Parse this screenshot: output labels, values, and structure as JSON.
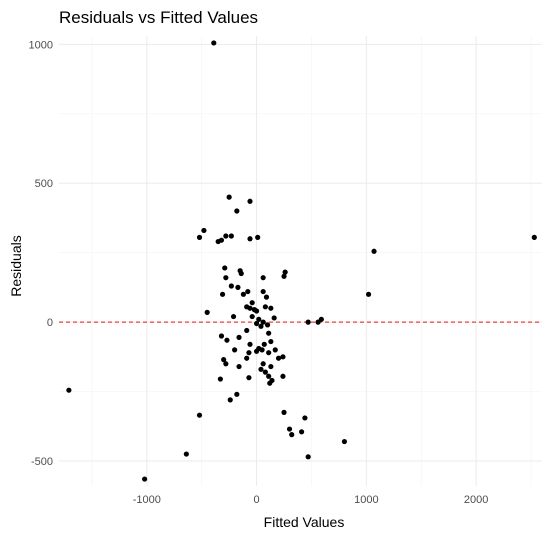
{
  "chart_data": {
    "type": "scatter",
    "title": "Residuals vs Fitted Values",
    "xlabel": "Fitted Values",
    "ylabel": "Residuals",
    "xlim": [
      -1800,
      2600
    ],
    "ylim": [
      -590,
      1030
    ],
    "x_ticks": [
      -1000,
      0,
      1000,
      2000
    ],
    "x_tick_labels": [
      "-1000",
      "0",
      "1000",
      "2000"
    ],
    "y_ticks": [
      -500,
      0,
      500,
      1000
    ],
    "y_tick_labels": [
      "-500",
      "0",
      "500",
      "1000"
    ],
    "grid": true,
    "reference_line": {
      "y": 0,
      "color": "#e8403a",
      "style": "dashed"
    },
    "point_color": "#000000",
    "points": [
      {
        "x": -390,
        "y": 1005
      },
      {
        "x": -250,
        "y": 450
      },
      {
        "x": -320,
        "y": 295
      },
      {
        "x": -280,
        "y": 310
      },
      {
        "x": -230,
        "y": 310
      },
      {
        "x": -180,
        "y": 400
      },
      {
        "x": -60,
        "y": 435
      },
      {
        "x": 10,
        "y": 305
      },
      {
        "x": -480,
        "y": 330
      },
      {
        "x": -520,
        "y": 305
      },
      {
        "x": -350,
        "y": 290
      },
      {
        "x": -60,
        "y": 300
      },
      {
        "x": -290,
        "y": 195
      },
      {
        "x": -150,
        "y": 185
      },
      {
        "x": -140,
        "y": 175
      },
      {
        "x": -280,
        "y": 160
      },
      {
        "x": 60,
        "y": 160
      },
      {
        "x": 260,
        "y": 180
      },
      {
        "x": 250,
        "y": 165
      },
      {
        "x": -230,
        "y": 130
      },
      {
        "x": -170,
        "y": 125
      },
      {
        "x": -310,
        "y": 100
      },
      {
        "x": -120,
        "y": 100
      },
      {
        "x": -80,
        "y": 110
      },
      {
        "x": 60,
        "y": 110
      },
      {
        "x": 90,
        "y": 90
      },
      {
        "x": -40,
        "y": 70
      },
      {
        "x": -90,
        "y": 55
      },
      {
        "x": -60,
        "y": 50
      },
      {
        "x": -20,
        "y": 45
      },
      {
        "x": 0,
        "y": 40
      },
      {
        "x": 80,
        "y": 55
      },
      {
        "x": 130,
        "y": 50
      },
      {
        "x": -450,
        "y": 35
      },
      {
        "x": -210,
        "y": 20
      },
      {
        "x": -40,
        "y": 20
      },
      {
        "x": 20,
        "y": 10
      },
      {
        "x": 60,
        "y": 0
      },
      {
        "x": 100,
        "y": -10
      },
      {
        "x": 0,
        "y": -5
      },
      {
        "x": 40,
        "y": -15
      },
      {
        "x": 160,
        "y": 15
      },
      {
        "x": -90,
        "y": -30
      },
      {
        "x": -320,
        "y": -50
      },
      {
        "x": -270,
        "y": -65
      },
      {
        "x": -160,
        "y": -55
      },
      {
        "x": -60,
        "y": -80
      },
      {
        "x": 20,
        "y": -95
      },
      {
        "x": 70,
        "y": -80
      },
      {
        "x": 110,
        "y": -40
      },
      {
        "x": 130,
        "y": -70
      },
      {
        "x": -200,
        "y": -100
      },
      {
        "x": -70,
        "y": -110
      },
      {
        "x": 0,
        "y": -105
      },
      {
        "x": 50,
        "y": -100
      },
      {
        "x": 110,
        "y": -110
      },
      {
        "x": 170,
        "y": -100
      },
      {
        "x": -300,
        "y": -135
      },
      {
        "x": -280,
        "y": -150
      },
      {
        "x": -90,
        "y": -130
      },
      {
        "x": 60,
        "y": -150
      },
      {
        "x": 130,
        "y": -160
      },
      {
        "x": 200,
        "y": -130
      },
      {
        "x": 240,
        "y": -125
      },
      {
        "x": -160,
        "y": -160
      },
      {
        "x": 40,
        "y": -170
      },
      {
        "x": 80,
        "y": -180
      },
      {
        "x": 110,
        "y": -195
      },
      {
        "x": -330,
        "y": -205
      },
      {
        "x": -70,
        "y": -200
      },
      {
        "x": 140,
        "y": -210
      },
      {
        "x": 240,
        "y": -195
      },
      {
        "x": 120,
        "y": -220
      },
      {
        "x": -180,
        "y": -260
      },
      {
        "x": -240,
        "y": -280
      },
      {
        "x": -520,
        "y": -335
      },
      {
        "x": 250,
        "y": -325
      },
      {
        "x": 440,
        "y": -345
      },
      {
        "x": 300,
        "y": -385
      },
      {
        "x": 320,
        "y": -405
      },
      {
        "x": 410,
        "y": -395
      },
      {
        "x": 800,
        "y": -430
      },
      {
        "x": -640,
        "y": -475
      },
      {
        "x": 470,
        "y": -485
      },
      {
        "x": -1020,
        "y": -565
      },
      {
        "x": -1710,
        "y": -245
      },
      {
        "x": 470,
        "y": 0
      },
      {
        "x": 560,
        "y": 0
      },
      {
        "x": 590,
        "y": 10
      },
      {
        "x": 1020,
        "y": 100
      },
      {
        "x": 1070,
        "y": 255
      },
      {
        "x": 2530,
        "y": 305
      }
    ]
  }
}
